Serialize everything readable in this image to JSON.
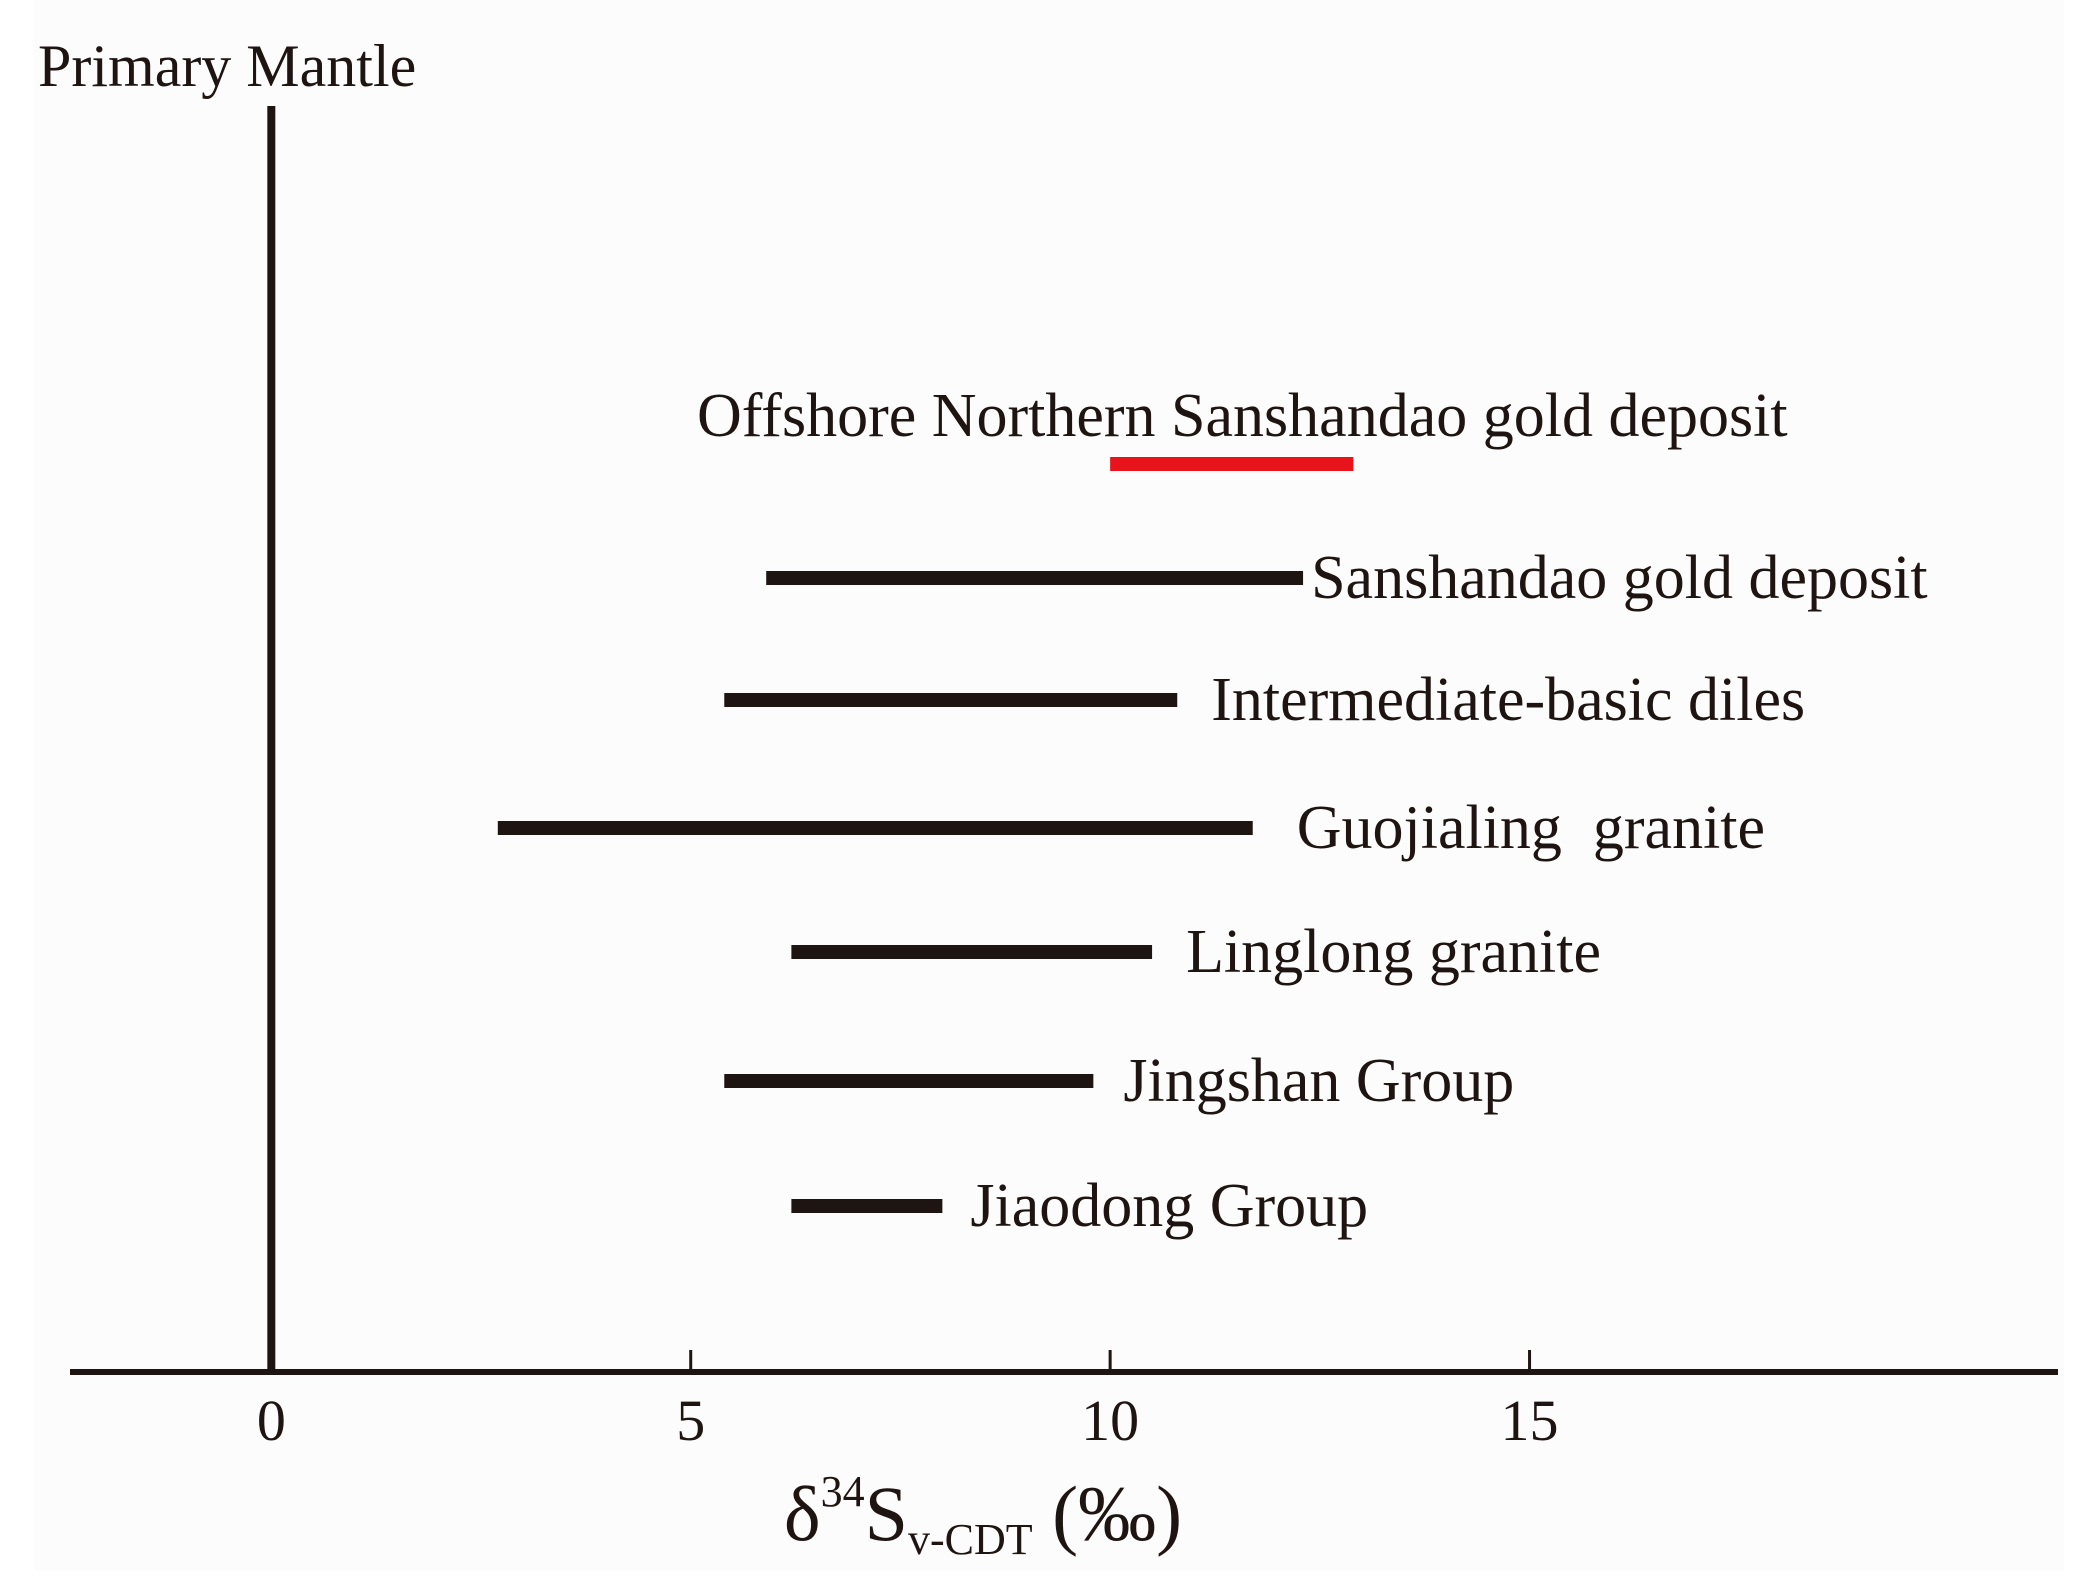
{
  "chart_data": {
    "type": "range-bar",
    "xlabel": {
      "delta": "δ",
      "superscript": "34",
      "main": "S",
      "subscript": "v-CDT",
      "unit": " (‰)"
    },
    "xlim": [
      -2.4,
      21.3
    ],
    "xticks": [
      0,
      5,
      10,
      15
    ],
    "reference_line": {
      "label": "Primary Mantle",
      "x": 0
    },
    "series": [
      {
        "name": "Offshore Northern Sanshandao gold deposit",
        "min": 10.0,
        "max": 12.9,
        "color": "#e8141c"
      },
      {
        "name": "Sanshandao gold deposit",
        "min": 5.9,
        "max": 12.3,
        "color": "#1e1412"
      },
      {
        "name": "Intermediate-basic diles",
        "min": 5.4,
        "max": 10.8,
        "color": "#1e1412"
      },
      {
        "name": "Guojialing  granite",
        "min": 2.7,
        "max": 11.7,
        "color": "#1e1412"
      },
      {
        "name": "Linglong granite",
        "min": 6.2,
        "max": 10.5,
        "color": "#1e1412"
      },
      {
        "name": "Jingshan Group",
        "min": 5.4,
        "max": 9.8,
        "color": "#1e1412"
      },
      {
        "name": "Jiaodong Group",
        "min": 6.2,
        "max": 8.0,
        "color": "#1e1412"
      }
    ],
    "colors": {
      "ink": "#1e1412",
      "highlight": "#e8141c",
      "background": "#ffffff",
      "panel": "#fcfcfc"
    }
  }
}
